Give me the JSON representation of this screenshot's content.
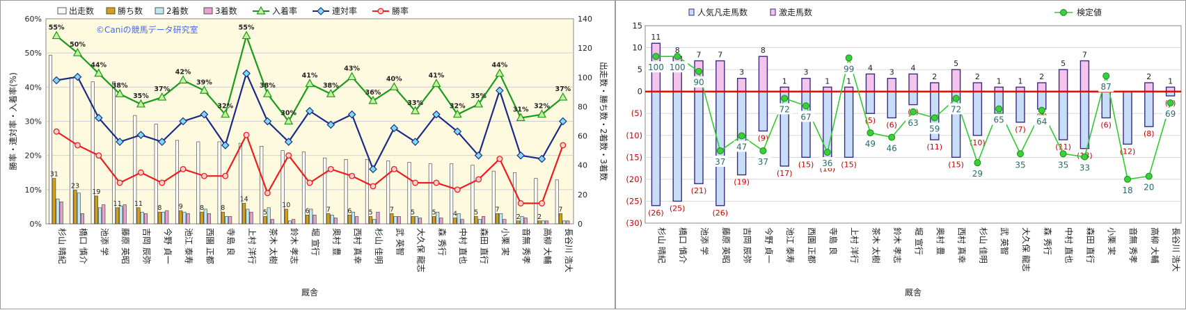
{
  "chart_data": [
    {
      "type": "bar+line",
      "xlabel": "厩舎",
      "ylabel_left": "勝率・連対率・入着率(%)",
      "ylabel_right": "出走数・勝ち数・2着数・3着数",
      "watermark": "©Caniの競馬データ研究室",
      "ylim_left": [
        0,
        60
      ],
      "ylim_right": [
        0,
        140
      ],
      "yticks_left": [
        "0%",
        "10%",
        "20%",
        "30%",
        "40%",
        "50%",
        "60%"
      ],
      "yticks_right": [
        "0",
        "20",
        "40",
        "60",
        "80",
        "100",
        "120",
        "140"
      ],
      "categories": [
        "杉山 晴紀",
        "橋口 慎介",
        "池添 学",
        "藤原 英昭",
        "吉岡 辰弥",
        "今野 貞一",
        "池江 泰寿",
        "西園 正都",
        "寺島 良",
        "上村 洋行",
        "茶木 太樹",
        "鈴木 孝志",
        "堀 宣行",
        "奥村 豊",
        "西村 真幸",
        "杉山 佳明",
        "武 英智",
        "大久保 龍志",
        "森 秀行",
        "中村 直也",
        "森田 直行",
        "小栗 実",
        "音無 秀孝",
        "高柳 大輔",
        "長谷川 浩大"
      ],
      "bar_series": [
        {
          "name": "出走数",
          "color": "#fafafa",
          "values": [
            115,
            100,
            97,
            97,
            74,
            68,
            57,
            56,
            56,
            55,
            53,
            50,
            49,
            45,
            44,
            44,
            43,
            42,
            41,
            41,
            40,
            36,
            35,
            31,
            30
          ]
        },
        {
          "name": "勝ち数",
          "color": "#d4a017",
          "values": [
            31,
            23,
            19,
            11,
            11,
            8,
            9,
            8,
            8,
            14,
            5,
            10,
            6,
            7,
            6,
            5,
            7,
            5,
            5,
            4,
            5,
            7,
            2,
            2,
            7
          ]
        },
        {
          "name": "2着数",
          "color": "#bfe8f2",
          "values": [
            17,
            21,
            11,
            12,
            8,
            8,
            8,
            10,
            5,
            10,
            11,
            2,
            10,
            6,
            8,
            3,
            5,
            5,
            8,
            7,
            3,
            7,
            5,
            2,
            2
          ]
        },
        {
          "name": "3着数",
          "color": "#e8a0d0",
          "values": [
            15,
            7,
            13,
            13,
            7,
            9,
            7,
            7,
            5,
            8,
            3,
            3,
            6,
            4,
            5,
            8,
            5,
            4,
            4,
            3,
            5,
            3,
            4,
            2,
            2
          ]
        }
      ],
      "line_series": [
        {
          "name": "入着率",
          "color": "#1a9a1a",
          "marker": "triangle",
          "labels": [
            "55%",
            "50%",
            "44%",
            "38%",
            "35%",
            "37%",
            "42%",
            "39%",
            "32%",
            "55%",
            "38%",
            "30%",
            "41%",
            "38%",
            "43%",
            "36%",
            "40%",
            "33%",
            "41%",
            "32%",
            "35%",
            "44%",
            "31%",
            "32%",
            "37%"
          ],
          "values": [
            55,
            50,
            44,
            38,
            35,
            37,
            42,
            39,
            32,
            55,
            38,
            30,
            41,
            38,
            43,
            36,
            40,
            33,
            41,
            32,
            35,
            44,
            31,
            32,
            37
          ]
        },
        {
          "name": "連対率",
          "color": "#1a2a8a",
          "marker": "diamond",
          "values": [
            42,
            43,
            31,
            24,
            26,
            24,
            30,
            32,
            23,
            44,
            30,
            24,
            33,
            29,
            32,
            16,
            28,
            24,
            32,
            27,
            20,
            39,
            20,
            19,
            30
          ]
        },
        {
          "name": "勝率",
          "color": "#ee1c1c",
          "marker": "circle",
          "values": [
            27,
            23,
            20,
            12,
            15,
            12,
            16,
            14,
            14,
            26,
            9,
            20,
            12,
            16,
            14,
            11,
            16,
            12,
            12,
            10,
            13,
            19,
            6,
            6,
            23
          ]
        }
      ]
    },
    {
      "type": "bar+line",
      "xlabel": "厩舎",
      "ylim": [
        -30,
        15
      ],
      "yticks": [
        "(30)",
        "(25)",
        "(20)",
        "(15)",
        "(10)",
        "(5)",
        "0",
        "5",
        "10",
        "15"
      ],
      "categories": [
        "杉山 晴紀",
        "橋口 慎介",
        "池添 学",
        "藤原 英昭",
        "吉岡 辰弥",
        "今野 貞一",
        "池江 泰寿",
        "西園 正都",
        "寺島 良",
        "上村 洋行",
        "茶木 太樹",
        "鈴木 孝志",
        "堀 宣行",
        "奥村 豊",
        "西村 真幸",
        "杉山 佳明",
        "武 英智",
        "大久保 龍志",
        "森 秀行",
        "中村 直也",
        "森田 直行",
        "小栗 実",
        "音無 秀孝",
        "高柳 大輔",
        "長谷川 浩大"
      ],
      "bar_series": [
        {
          "name": "人気凡走馬数",
          "color": "#c8ddf8",
          "values": [
            -26,
            -25,
            -21,
            -26,
            -19,
            -9,
            -17,
            -15,
            -16,
            -15,
            -5,
            -6,
            -3,
            -11,
            -15,
            -10,
            -5,
            -7,
            -4,
            -11,
            -13,
            -6,
            -12,
            -8,
            -1
          ]
        },
        {
          "name": "激走馬数",
          "color": "#f4c4ec",
          "values": [
            11,
            8,
            7,
            7,
            3,
            8,
            1,
            3,
            1,
            1,
            4,
            3,
            4,
            2,
            5,
            2,
            1,
            1,
            2,
            5,
            7,
            0,
            0,
            2,
            1
          ]
        }
      ],
      "pos_labels": [
        "11",
        "8",
        "7",
        "7",
        "3",
        "8",
        "1",
        "3",
        "1",
        "1",
        "4",
        "3",
        "4",
        "2",
        "5",
        "2",
        "1",
        "1",
        "2",
        "5",
        "7",
        "",
        "",
        "2",
        "1"
      ],
      "neg_labels": [
        "(26)",
        "(25)",
        "(21)",
        "(26)",
        "(19)",
        "(9)",
        "(17)",
        "(15)",
        "(16)",
        "(15)",
        "(5)",
        "(6)",
        "(3)",
        "(11)",
        "(15)",
        "(10)",
        "(5)",
        "(7)",
        "(4)",
        "(11)",
        "(13)",
        "(6)",
        "(12)",
        "(8)",
        "(1)"
      ],
      "line_series": [
        {
          "name": "検定値",
          "color": "#2ecc2e",
          "marker": "circle",
          "values": [
            100,
            100,
            90,
            37,
            47,
            37,
            72,
            67,
            36,
            99,
            49,
            46,
            63,
            59,
            72,
            29,
            65,
            35,
            64,
            35,
            33,
            87,
            18,
            20,
            69
          ]
        }
      ]
    }
  ]
}
